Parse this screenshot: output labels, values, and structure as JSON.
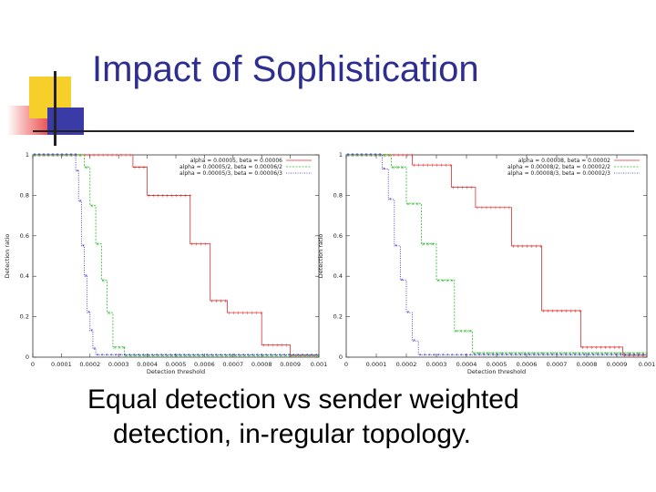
{
  "slide": {
    "title": "Impact of Sophistication",
    "caption_line1": "Equal detection vs sender weighted",
    "caption_line2": "detection, in-regular topology."
  },
  "colors": {
    "title": "#2e2e8f",
    "series": [
      "#e03030",
      "#2eb82e",
      "#2020c8"
    ]
  },
  "chart_data": [
    {
      "type": "line",
      "title": "",
      "xlabel": "Detection threshold",
      "ylabel": "Detection ratio",
      "xlim": [
        0,
        0.001
      ],
      "ylim": [
        0,
        1
      ],
      "xticks": [
        "0",
        "0.0001",
        "0.0002",
        "0.0003",
        "0.0004",
        "0.0005",
        "0.0006",
        "0.0007",
        "0.0008",
        "0.0009",
        "0.001"
      ],
      "yticks": [
        "0",
        "0.2",
        "0.4",
        "0.6",
        "0.8",
        "1"
      ],
      "legend_position": "top-right",
      "series": [
        {
          "name": "alpha = 0.00005,  beta = 0.00006",
          "style": "step",
          "x": [
            0,
            0.00035,
            0.0004,
            0.00055,
            0.00062,
            0.00068,
            0.0008,
            0.0009
          ],
          "y": [
            1.0,
            0.94,
            0.8,
            0.56,
            0.28,
            0.22,
            0.06,
            0.01
          ]
        },
        {
          "name": "alpha = 0.00005/2,  beta = 0.00006/2",
          "style": "step",
          "x": [
            0,
            0.00018,
            0.0002,
            0.00022,
            0.00024,
            0.00026,
            0.00028,
            0.00032
          ],
          "y": [
            1.0,
            0.94,
            0.75,
            0.56,
            0.38,
            0.22,
            0.05,
            0.01
          ]
        },
        {
          "name": "alpha = 0.00005/3,  beta = 0.00006/3",
          "style": "step",
          "x": [
            0,
            0.00015,
            0.00016,
            0.00017,
            0.00018,
            0.00019,
            0.0002,
            0.00021,
            0.00022
          ],
          "y": [
            1.0,
            0.92,
            0.77,
            0.55,
            0.4,
            0.22,
            0.13,
            0.04,
            0.01
          ]
        }
      ]
    },
    {
      "type": "line",
      "title": "",
      "xlabel": "Detection threshold",
      "ylabel": "Detection ratio",
      "xlim": [
        0,
        0.001
      ],
      "ylim": [
        0,
        1
      ],
      "xticks": [
        "0",
        "0.0001",
        "0.0002",
        "0.0003",
        "0.0004",
        "0.0005",
        "0.0006",
        "0.0007",
        "0.0008",
        "0.0009",
        "0.001"
      ],
      "yticks": [
        "0",
        "0.2",
        "0.4",
        "0.6",
        "0.8",
        "1"
      ],
      "legend_position": "top-right",
      "series": [
        {
          "name": "alpha = 0.00008,  beta = 0.00002",
          "style": "step",
          "x": [
            0,
            0.00022,
            0.00035,
            0.00043,
            0.00055,
            0.00065,
            0.00078,
            0.00092
          ],
          "y": [
            1.0,
            0.95,
            0.84,
            0.74,
            0.55,
            0.23,
            0.05,
            0.01
          ]
        },
        {
          "name": "alpha = 0.00008/2,  beta = 0.00002/2",
          "style": "step",
          "x": [
            0,
            0.00015,
            0.0002,
            0.00025,
            0.0003,
            0.00036,
            0.00042
          ],
          "y": [
            1.0,
            0.94,
            0.76,
            0.56,
            0.38,
            0.13,
            0.02
          ]
        },
        {
          "name": "alpha = 0.00008/3,  beta = 0.00002/3",
          "style": "step",
          "x": [
            0,
            0.00012,
            0.00014,
            0.00016,
            0.00018,
            0.0002,
            0.00022,
            0.00024
          ],
          "y": [
            1.0,
            0.93,
            0.78,
            0.55,
            0.38,
            0.22,
            0.08,
            0.01
          ]
        }
      ]
    }
  ]
}
